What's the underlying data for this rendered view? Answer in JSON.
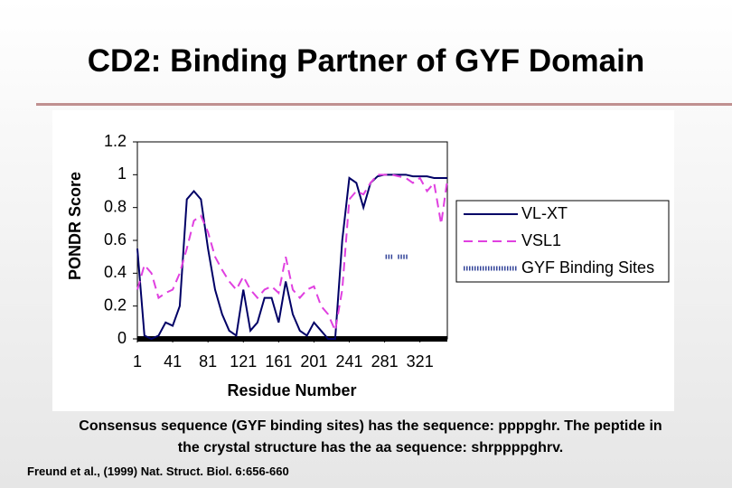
{
  "header": {
    "title": "CD2: Binding Partner of GYF Domain"
  },
  "chart_data": {
    "type": "line",
    "xlabel": "Residue Number",
    "ylabel": "PONDR Score",
    "x": [
      1,
      9,
      17,
      25,
      33,
      41,
      49,
      57,
      65,
      73,
      81,
      89,
      97,
      105,
      113,
      121,
      129,
      137,
      145,
      153,
      161,
      169,
      177,
      185,
      193,
      201,
      209,
      217,
      225,
      233,
      241,
      249,
      257,
      265,
      273,
      281,
      289,
      297,
      305,
      313,
      321,
      329,
      337,
      345,
      352
    ],
    "series": [
      {
        "name": "VL-XT",
        "color": "#000066",
        "style": "solid",
        "values": [
          0.55,
          0.02,
          0.0,
          0.02,
          0.1,
          0.08,
          0.2,
          0.85,
          0.9,
          0.85,
          0.55,
          0.3,
          0.15,
          0.05,
          0.02,
          0.3,
          0.05,
          0.1,
          0.25,
          0.25,
          0.1,
          0.35,
          0.15,
          0.05,
          0.02,
          0.1,
          0.05,
          0.0,
          0.0,
          0.6,
          0.98,
          0.95,
          0.8,
          0.95,
          0.99,
          1.0,
          1.0,
          1.0,
          1.0,
          0.99,
          0.99,
          0.99,
          0.98,
          0.98,
          0.98
        ]
      },
      {
        "name": "VSL1",
        "color": "#e040e0",
        "style": "dashed",
        "values": [
          0.3,
          0.45,
          0.4,
          0.25,
          0.28,
          0.3,
          0.4,
          0.55,
          0.72,
          0.75,
          0.65,
          0.5,
          0.42,
          0.35,
          0.3,
          0.38,
          0.3,
          0.25,
          0.3,
          0.32,
          0.28,
          0.5,
          0.3,
          0.25,
          0.3,
          0.32,
          0.2,
          0.15,
          0.05,
          0.3,
          0.85,
          0.9,
          0.88,
          0.95,
          1.0,
          1.0,
          1.0,
          0.99,
          0.98,
          0.95,
          0.98,
          0.9,
          0.95,
          0.7,
          0.97
        ]
      },
      {
        "name": "GYF Binding Sites",
        "color": "#334499",
        "style": "dotted",
        "x": [
          282,
          290,
          293,
          296,
          307
        ],
        "values": [
          0.5,
          0.5,
          null,
          0.5,
          0.5
        ]
      }
    ],
    "xlim": [
      1,
      352
    ],
    "xticks": [
      1,
      41,
      81,
      121,
      161,
      201,
      241,
      281,
      321
    ],
    "ylim": [
      0,
      1.2
    ],
    "yticks": [
      0,
      0.2,
      0.4,
      0.6,
      0.8,
      1,
      1.2
    ],
    "legend": "right"
  },
  "caption": "Consensus sequence (GYF binding sites) has the sequence: ppppghr. The peptide in the crystal structure has the aa sequence: shrppppghrv.",
  "citation": "Freund et al., (1999) Nat. Struct. Biol. 6:656-660"
}
